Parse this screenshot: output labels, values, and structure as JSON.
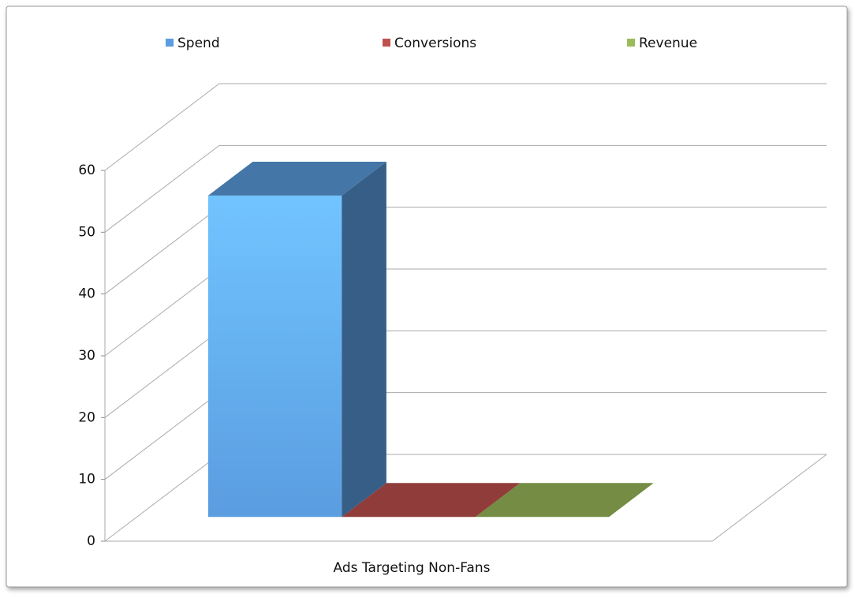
{
  "chart_data": {
    "type": "bar3d",
    "categories": [
      "Ads Targeting Non-Fans"
    ],
    "series": [
      {
        "name": "Spend",
        "color": "#5a9de0",
        "values": [
          52
        ]
      },
      {
        "name": "Conversions",
        "color": "#c0504d",
        "values": [
          0
        ]
      },
      {
        "name": "Revenue",
        "color": "#9bbb59",
        "values": [
          0
        ]
      }
    ],
    "ylim": [
      0,
      60
    ],
    "yticks": [
      0,
      10,
      20,
      30,
      40,
      50,
      60
    ],
    "grid": true,
    "legend": "top"
  }
}
